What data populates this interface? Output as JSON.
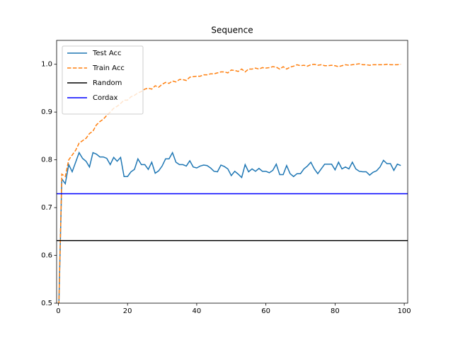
{
  "chart_data": {
    "type": "line",
    "title": "Sequence",
    "x": [
      0,
      1,
      2,
      3,
      4,
      5,
      6,
      7,
      8,
      9,
      10,
      11,
      12,
      13,
      14,
      15,
      16,
      17,
      18,
      19,
      20,
      21,
      22,
      23,
      24,
      25,
      26,
      27,
      28,
      29,
      30,
      31,
      32,
      33,
      34,
      35,
      36,
      37,
      38,
      39,
      40,
      41,
      42,
      43,
      44,
      45,
      46,
      47,
      48,
      49,
      50,
      51,
      52,
      53,
      54,
      55,
      56,
      57,
      58,
      59,
      60,
      61,
      62,
      63,
      64,
      65,
      66,
      67,
      68,
      69,
      70,
      71,
      72,
      73,
      74,
      75,
      76,
      77,
      78,
      79,
      80,
      81,
      82,
      83,
      84,
      85,
      86,
      87,
      88,
      89,
      90,
      91,
      92,
      93,
      94,
      95,
      96,
      97,
      98,
      99
    ],
    "series": [
      {
        "name": "Test Acc",
        "color": "#1f77b4",
        "dash": false,
        "values": [
          0.45,
          0.76,
          0.75,
          0.79,
          0.775,
          0.795,
          0.815,
          0.803,
          0.797,
          0.785,
          0.815,
          0.812,
          0.806,
          0.806,
          0.803,
          0.79,
          0.805,
          0.797,
          0.805,
          0.765,
          0.765,
          0.775,
          0.78,
          0.802,
          0.79,
          0.79,
          0.78,
          0.795,
          0.772,
          0.777,
          0.787,
          0.802,
          0.802,
          0.815,
          0.795,
          0.79,
          0.79,
          0.787,
          0.798,
          0.785,
          0.783,
          0.787,
          0.789,
          0.788,
          0.783,
          0.776,
          0.775,
          0.789,
          0.786,
          0.781,
          0.767,
          0.776,
          0.77,
          0.763,
          0.79,
          0.775,
          0.781,
          0.776,
          0.782,
          0.776,
          0.776,
          0.773,
          0.778,
          0.791,
          0.769,
          0.769,
          0.788,
          0.771,
          0.765,
          0.771,
          0.771,
          0.781,
          0.787,
          0.795,
          0.781,
          0.771,
          0.781,
          0.791,
          0.791,
          0.791,
          0.779,
          0.795,
          0.781,
          0.785,
          0.781,
          0.795,
          0.781,
          0.776,
          0.775,
          0.775,
          0.768,
          0.774,
          0.777,
          0.785,
          0.799,
          0.792,
          0.792,
          0.778,
          0.791,
          0.788
        ]
      },
      {
        "name": "Train Acc",
        "color": "#ff7f0e",
        "dash": true,
        "values": [
          0.45,
          0.77,
          0.765,
          0.8,
          0.81,
          0.82,
          0.835,
          0.84,
          0.845,
          0.855,
          0.86,
          0.873,
          0.88,
          0.885,
          0.893,
          0.9,
          0.908,
          0.912,
          0.918,
          0.925,
          0.925,
          0.932,
          0.935,
          0.94,
          0.943,
          0.948,
          0.95,
          0.948,
          0.955,
          0.952,
          0.958,
          0.962,
          0.96,
          0.965,
          0.963,
          0.968,
          0.968,
          0.966,
          0.973,
          0.974,
          0.975,
          0.975,
          0.978,
          0.978,
          0.98,
          0.98,
          0.982,
          0.984,
          0.984,
          0.982,
          0.988,
          0.987,
          0.985,
          0.99,
          0.984,
          0.99,
          0.99,
          0.992,
          0.99,
          0.993,
          0.992,
          0.993,
          0.995,
          0.994,
          0.99,
          0.995,
          0.99,
          0.994,
          0.996,
          0.999,
          0.997,
          0.998,
          0.996,
          0.999,
          1.0,
          0.998,
          0.999,
          0.997,
          0.997,
          0.998,
          0.997,
          0.995,
          0.997,
          0.999,
          0.998,
          0.999,
          1.0,
          1.001,
          0.999,
          0.999,
          0.998,
          0.999,
          0.999,
          0.999,
          0.999,
          1.0,
          0.999,
          0.999,
          0.999,
          1.0
        ]
      }
    ],
    "hlines": [
      {
        "name": "Random",
        "color": "#000000",
        "value": 0.631
      },
      {
        "name": "Cordax",
        "color": "#0000ff",
        "value": 0.729
      }
    ],
    "xlim": [
      -0.5,
      101
    ],
    "ylim": [
      0.5,
      1.05
    ],
    "xticks": [
      0,
      20,
      40,
      60,
      80,
      100
    ],
    "yticks": [
      0.5,
      0.6,
      0.7,
      0.8,
      0.9,
      {
        "value": 1.0,
        "label": "1.0"
      }
    ],
    "legend": "upper left"
  }
}
